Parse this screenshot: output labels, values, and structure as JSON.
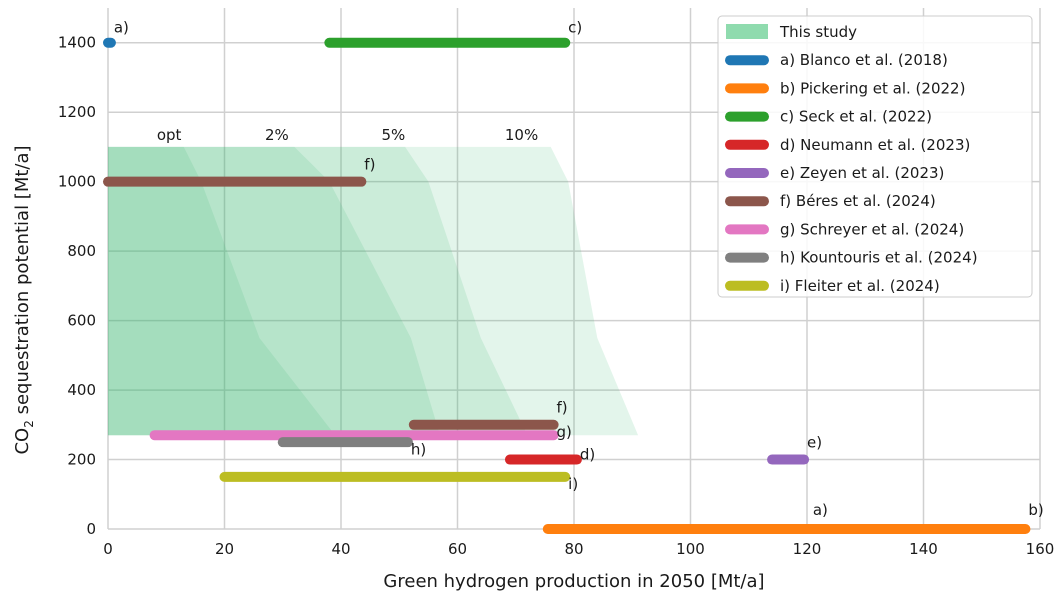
{
  "chart_data": {
    "type": "range-bars",
    "xlabel": "Green hydrogen production in 2050 [Mt/a]",
    "ylabel_main": "CO",
    "ylabel_sub": "2",
    "ylabel_rest": " sequestration potential [Mt/a]",
    "xlim": [
      0,
      160
    ],
    "ylim": [
      0,
      1500
    ],
    "xticks": [
      0,
      20,
      40,
      60,
      80,
      100,
      120,
      140,
      160
    ],
    "yticks": [
      0,
      200,
      400,
      600,
      800,
      1000,
      1200,
      1400
    ],
    "grid": true,
    "legend_position": "top-right",
    "regions": [
      {
        "label": "opt",
        "label_x": 10.5,
        "label_y": 1120,
        "polygon": [
          [
            0,
            1100
          ],
          [
            13,
            1100
          ],
          [
            16,
            1000
          ],
          [
            26,
            550
          ],
          [
            39,
            270
          ],
          [
            0,
            270
          ]
        ]
      },
      {
        "label": "2%",
        "label_x": 29,
        "label_y": 1120,
        "polygon": [
          [
            0,
            1100
          ],
          [
            32,
            1100
          ],
          [
            38,
            1000
          ],
          [
            52,
            550
          ],
          [
            57,
            270
          ],
          [
            0,
            270
          ]
        ]
      },
      {
        "label": "5%",
        "label_x": 49,
        "label_y": 1120,
        "polygon": [
          [
            0,
            1100
          ],
          [
            51,
            1100
          ],
          [
            55,
            1000
          ],
          [
            64,
            550
          ],
          [
            72,
            270
          ],
          [
            0,
            270
          ]
        ]
      },
      {
        "label": "10%",
        "label_x": 71,
        "label_y": 1120,
        "polygon": [
          [
            0,
            1100
          ],
          [
            76,
            1100
          ],
          [
            79,
            1000
          ],
          [
            84,
            550
          ],
          [
            91,
            270
          ],
          [
            0,
            270
          ]
        ]
      }
    ],
    "series": [
      {
        "name": "This study",
        "color": "#8fdbae",
        "kind": "area",
        "segments": []
      },
      {
        "name": "a) Blanco et al. (2018)",
        "color": "#1f77b4",
        "segments": [
          {
            "x": [
              0,
              0.5
            ],
            "y": 1400,
            "label": "a)",
            "lx": 1,
            "ly": 1430
          },
          {
            "x": [
              89.5,
              121
            ],
            "y": 0,
            "label": "a)",
            "lx": 121,
            "ly": 40
          }
        ]
      },
      {
        "name": "b) Pickering et al. (2022)",
        "color": "#ff7f0e",
        "segments": [
          {
            "x": [
              75.5,
              157.5
            ],
            "y": 0,
            "label": "b)",
            "lx": 158,
            "ly": 40
          }
        ]
      },
      {
        "name": "c) Seck et al. (2022)",
        "color": "#2ca02c",
        "segments": [
          {
            "x": [
              38,
              78.5
            ],
            "y": 1400,
            "label": "c)",
            "lx": 79,
            "ly": 1430
          }
        ]
      },
      {
        "name": "d) Neumann et al. (2023)",
        "color": "#d62728",
        "segments": [
          {
            "x": [
              69,
              80.5
            ],
            "y": 200,
            "label": "d)",
            "lx": 81,
            "ly": 200
          }
        ]
      },
      {
        "name": "e) Zeyen et al. (2023)",
        "color": "#9467bd",
        "segments": [
          {
            "x": [
              114,
              119.5
            ],
            "y": 200,
            "label": "e)",
            "lx": 120,
            "ly": 235
          }
        ]
      },
      {
        "name": "f) Béres et al. (2024)",
        "color": "#8c564b",
        "segments": [
          {
            "x": [
              0,
              43.5
            ],
            "y": 1000,
            "label": "f)",
            "lx": 44,
            "ly": 1035
          },
          {
            "x": [
              52.5,
              76.5
            ],
            "y": 300,
            "label": "f)",
            "lx": 77,
            "ly": 335
          }
        ]
      },
      {
        "name": "g) Schreyer et al. (2024)",
        "color": "#e377c2",
        "segments": [
          {
            "x": [
              8,
              76.5
            ],
            "y": 270,
            "label": "g)",
            "lx": 77,
            "ly": 265
          }
        ]
      },
      {
        "name": "h) Kountouris et al. (2024)",
        "color": "#7f7f7f",
        "segments": [
          {
            "x": [
              30,
              51.5
            ],
            "y": 250,
            "label": "h)",
            "lx": 52,
            "ly": 215
          }
        ]
      },
      {
        "name": "i) Fleiter et al. (2024)",
        "color": "#bcbd22",
        "segments": [
          {
            "x": [
              20,
              78.5
            ],
            "y": 150,
            "label": "i)",
            "lx": 79,
            "ly": 115
          }
        ]
      }
    ]
  }
}
